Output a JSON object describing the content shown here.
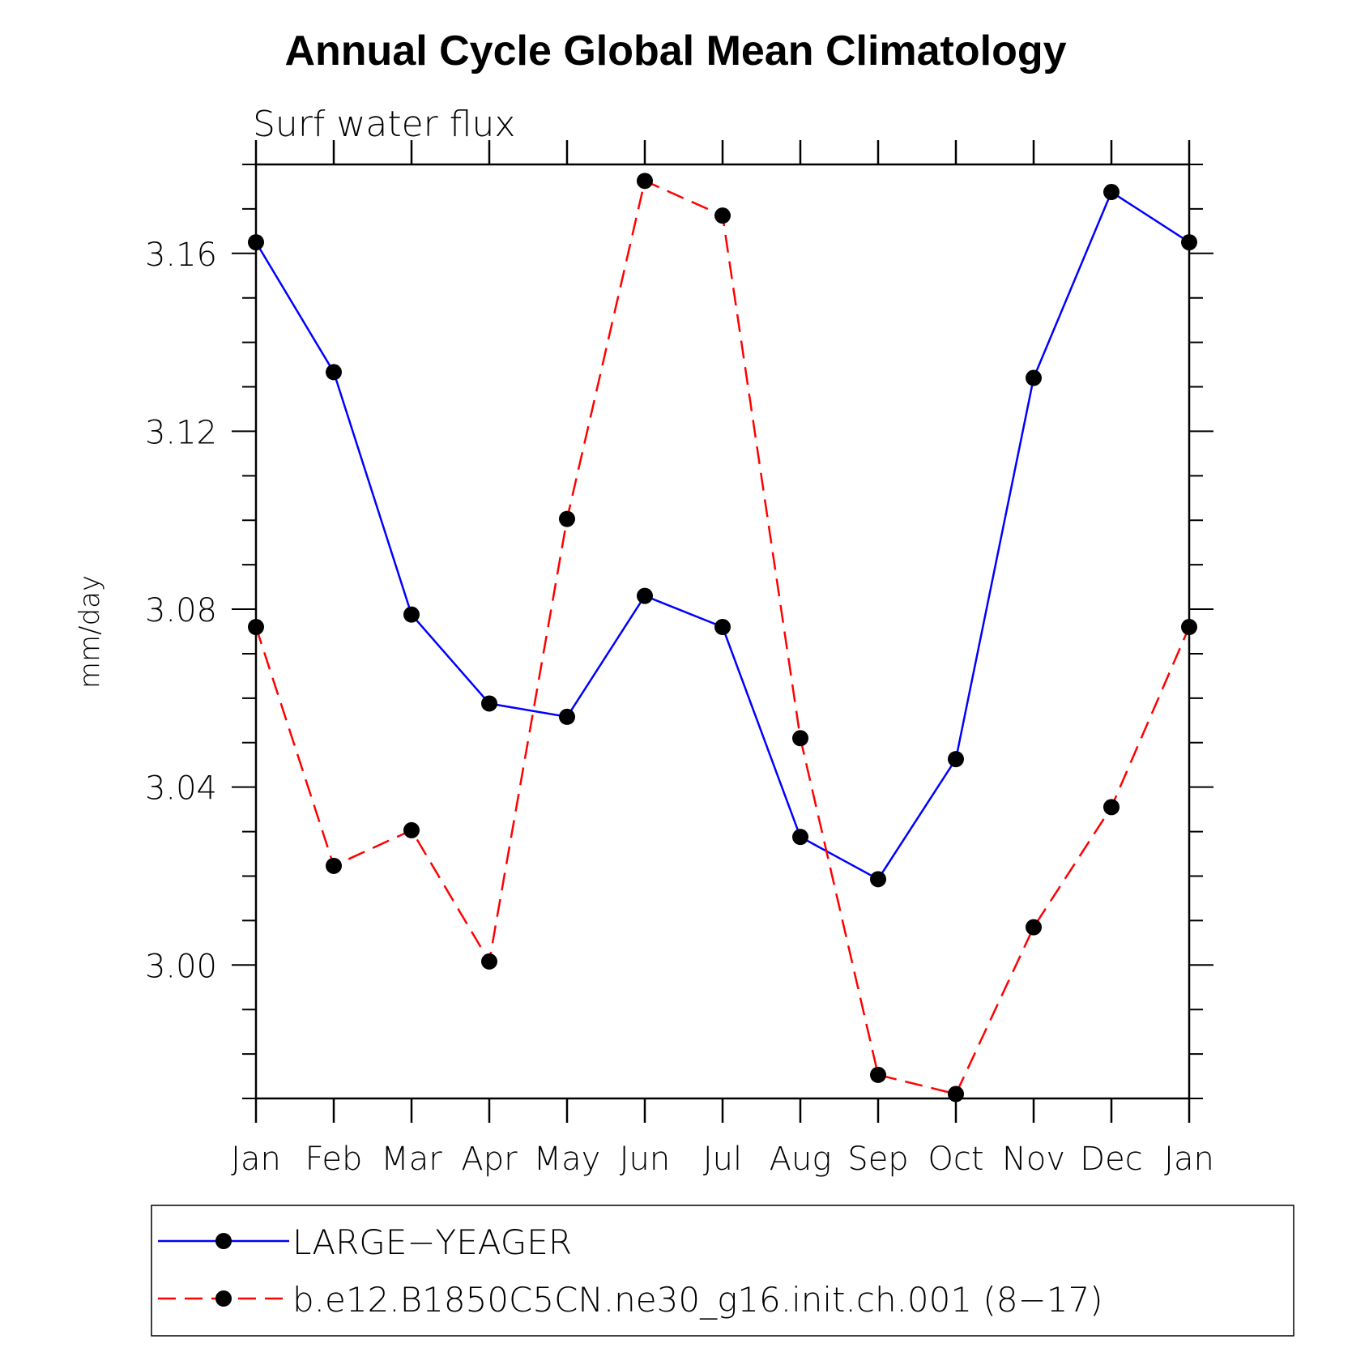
{
  "chart_data": {
    "type": "line",
    "title": "Annual Cycle Global Mean Climatology",
    "subtitle": "Surf water flux",
    "ylabel": "mm/day",
    "xlabel": "",
    "categories": [
      "Jan",
      "Feb",
      "Mar",
      "Apr",
      "May",
      "Jun",
      "Jul",
      "Aug",
      "Sep",
      "Oct",
      "Nov",
      "Dec",
      "Jan"
    ],
    "ylim": [
      2.97,
      3.18
    ],
    "yticks": [
      "3.00",
      "3.04",
      "3.08",
      "3.12",
      "3.16"
    ],
    "grid": false,
    "legend_position": "bottom",
    "series": [
      {
        "name": "LARGE−YEAGER",
        "color": "#0000ff",
        "dash": "solid",
        "values": [
          3.1625,
          3.1333,
          3.0788,
          3.0588,
          3.0558,
          3.083,
          3.076,
          3.0288,
          3.0193,
          3.0463,
          3.132,
          3.1738,
          3.1625
        ]
      },
      {
        "name": "b.e12.B1850C5CN.ne30_g16.init.ch.001 (8−17)",
        "color": "#ff0000",
        "dash": "dashed",
        "values": [
          3.076,
          3.0223,
          3.0303,
          3.0008,
          3.1003,
          3.1763,
          3.1685,
          3.051,
          2.9753,
          2.971,
          3.0085,
          3.0355,
          3.076
        ]
      }
    ]
  }
}
